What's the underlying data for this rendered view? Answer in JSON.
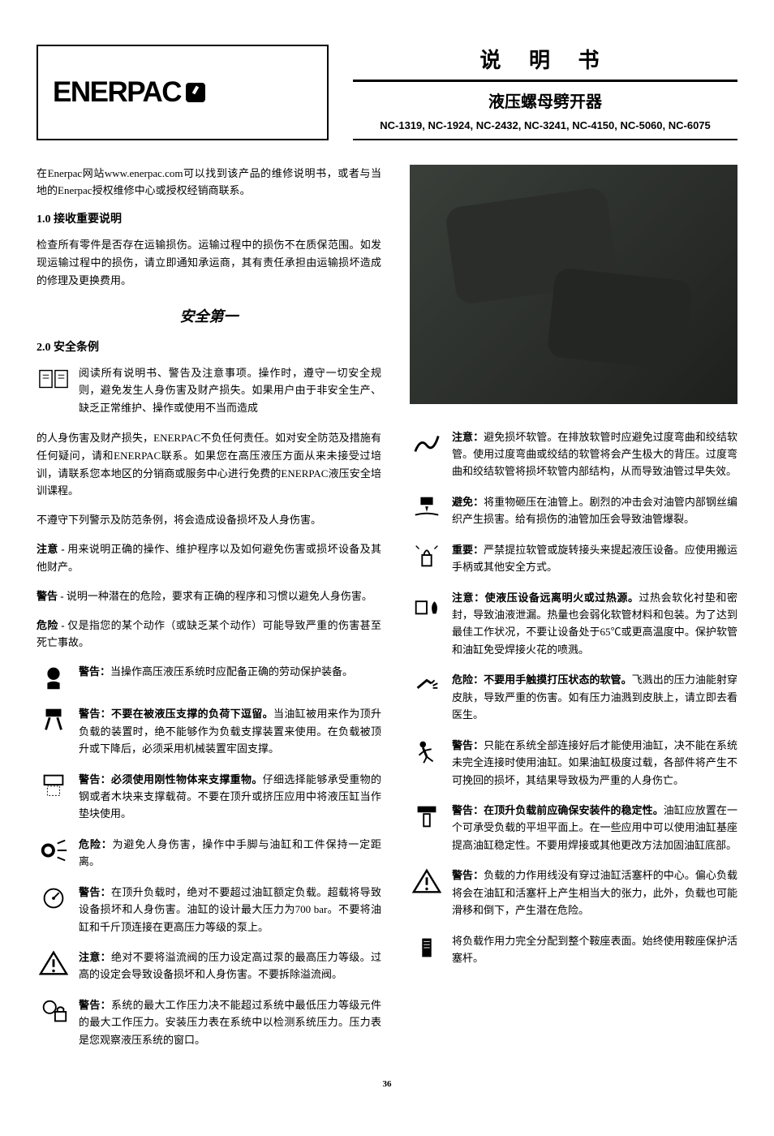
{
  "logo": {
    "brand": "ENERPAC",
    "regmark": "®"
  },
  "title": {
    "main": "说 明 书",
    "sub": "液压螺母劈开器"
  },
  "models": "NC-1319, NC-1924, NC-2432, NC-3241, NC-4150, NC-5060, NC-6075",
  "intro": "在Enerpac网站www.enerpac.com可以找到该产品的维修说明书，或者与当地的Enerpac授权维修中心或授权经销商联系。",
  "section1": {
    "heading": "1.0  接收重要说明",
    "text": "检查所有零件是否存在运输损伤。运输过程中的损伤不在质保范围。如发现运输过程中的损伤，请立即通知承运商，其有责任承担由运输损坏造成的修理及更换费用。"
  },
  "safety_first": "安全第一",
  "section2": {
    "heading": "2.0  安全条例"
  },
  "left_items": [
    {
      "icon": "book",
      "text": "阅读所有说明书、警告及注意事项。操作时，遵守一切安全规则，避免发生人身伤害及财产损失。如果用户由于非安全生产、缺乏正常维护、操作或使用不当而造成"
    },
    {
      "icon": null,
      "text": "的人身伤害及财产损失，ENERPAC不负任何责任。如对安全防范及措施有任何疑问，请和ENERPAC联系。如果您在高压液压方面从来未接受过培训，请联系您本地区的分销商或服务中心进行免费的ENERPAC液压安全培训课程。"
    },
    {
      "icon": null,
      "text": "不遵守下列警示及防范条例，将会造成设备损坏及人身伤害。"
    },
    {
      "icon": null,
      "bold_prefix": "注意 - ",
      "text": "用来说明正确的操作、维护程序以及如何避免伤害或损坏设备及其他财产。"
    },
    {
      "icon": null,
      "bold_prefix": "警告 - ",
      "text": "说明一种潜在的危险，要求有正确的程序和习惯以避免人身伤害。"
    },
    {
      "icon": null,
      "bold_prefix": "危险 - ",
      "text": "仅是指您的某个动作（或缺乏某个动作）可能导致严重的伤害甚至死亡事故。"
    },
    {
      "icon": "person-hardhat",
      "bold_prefix": "警告：",
      "text": "当操作高压液压系统时应配备正确的劳动保护装备。"
    },
    {
      "icon": "weight-stand",
      "bold_prefix": "警告：不要在被液压支撑的负荷下逗留。",
      "text": "当油缸被用来作为顶升负载的装置时，绝不能够作为负载支撑装置来使用。在负载被顶升或下降后，必须采用机械装置牢固支撑。"
    },
    {
      "icon": "weight-block",
      "bold_prefix": "警告：必须使用刚性物体来支撑重物。",
      "text": "仔细选择能够承受重物的钢或者木块来支撑载荷。不要在顶升或挤压应用中将液压缸当作垫块使用。"
    },
    {
      "icon": "hand-spray",
      "bold_prefix": "危险：",
      "text": "为避免人身伤害，操作中手脚与油缸和工件保持一定距离。"
    },
    {
      "icon": "gauge",
      "bold_prefix": "警告：",
      "text": "在顶升负载时，绝对不要超过油缸额定负载。超载将导致设备损坏和人身伤害。油缸的设计最大压力为700 bar。不要将油缸和千斤顶连接在更高压力等级的泵上。"
    },
    {
      "icon": "triangle-warning",
      "bold_prefix": "注意：",
      "text": "绝对不要将溢流阀的压力设定高过泵的最高压力等级。过高的设定会导致设备损坏和人身伤害。不要拆除溢流阀。"
    },
    {
      "icon": "gauge-lock",
      "bold_prefix": "警告：",
      "text": "系统的最大工作压力决不能超过系统中最低压力等级元件的最大工作压力。安装压力表在系统中以检测系统压力。压力表是您观察液压系统的窗口。"
    }
  ],
  "right_items": [
    {
      "icon": "hose-bend",
      "bold_prefix": "注意：",
      "text": "避免损坏软管。在排放软管时应避免过度弯曲和绞结软管。使用过度弯曲或绞结的软管将会产生极大的背压。过度弯曲和绞结软管将损坏软管内部结构，从而导致油管过早失效。"
    },
    {
      "icon": "weight-drop",
      "bold_prefix": "避免：",
      "text": "将重物砸压在油管上。剧烈的冲击会对油管内部钢丝编织产生损害。给有损伤的油管加压会导致油管爆裂。"
    },
    {
      "icon": "lift-handle",
      "bold_prefix": "重要：",
      "text": "严禁提拉软管或旋转接头来提起液压设备。应使用搬运手柄或其他安全方式。"
    },
    {
      "icon": "heat-fire",
      "bold_prefix": "注意：使液压设备远离明火或过热源。",
      "text": "过热会软化衬垫和密封，导致油液泄漏。热量也会弱化软管材料和包装。为了达到最佳工作状况，不要让设备处于65℃或更高温度中。保护软管和油缸免受焊接火花的喷溅。"
    },
    {
      "icon": "pressure-hand",
      "bold_prefix": "危险：不要用手触摸打压状态的软管。",
      "text": "飞溅出的压力油能射穿皮肤，导致严重的伤害。如有压力油溅到皮肤上，请立即去看医生。"
    },
    {
      "icon": "person-fall",
      "bold_prefix": "警告：",
      "text": "只能在系统全部连接好后才能使用油缸，决不能在系统未完全连接时使用油缸。如果油缸极度过载，各部件将产生不可挽回的损坏，其结果导致极为严重的人身伤亡。"
    },
    {
      "icon": "cylinder-load",
      "bold_prefix": "警告：在顶升负载前应确保安装件的稳定性。",
      "text": "油缸应放置在一个可承受负载的平坦平面上。在一些应用中可以使用油缸基座提高油缸稳定性。不要用焊接或其他更改方法加固油缸底部。"
    },
    {
      "icon": "triangle-warning",
      "bold_prefix": "警告：",
      "text": "负载的力作用线没有穿过油缸活塞杆的中心。偏心负载将会在油缸和活塞杆上产生相当大的张力，此外，负载也可能滑移和倒下，产生潜在危险。"
    },
    {
      "icon": "saddle",
      "text": "将负载作用力完全分配到整个鞍座表面。始终使用鞍座保护活塞杆。"
    }
  ],
  "page_number": "36",
  "colors": {
    "text": "#000000",
    "background": "#ffffff",
    "product_bg": "#2a2d2a"
  }
}
